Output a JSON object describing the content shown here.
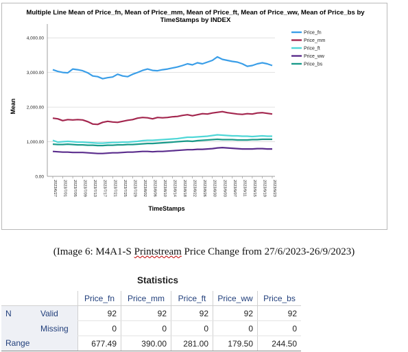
{
  "chart_data": {
    "type": "line",
    "title": "Multiple Line Mean of Price_fn, Mean of Price_mm, Mean of Price_ft, Mean of Price_ww, Mean of Price_bs by TimeStamps by INDEX",
    "title_line1": "Multiple Line Mean of Price_fn, Mean of Price_mm, Mean of Price_ft, Mean of Price_ww, Mean of Price_bs by",
    "title_line2": "TimeStamps by INDEX",
    "xlabel": "TimeStamps",
    "ylabel": "Mean",
    "ylim": [
      0,
      4400
    ],
    "yticks": [
      0,
      1000,
      2000,
      3000,
      4000
    ],
    "ytick_labels": [
      "0.00",
      "1,000.00",
      "2,000.00",
      "3,000.00",
      "4,000.00"
    ],
    "xtick_labels": [
      "2023/6/27",
      "2023/7/01",
      "2023/7/05",
      "2023/7/09",
      "2023/7/13",
      "2023/7/17",
      "2023/7/21",
      "2023/7/25",
      "2023/7/29",
      "2023/8/02",
      "2023/8/06",
      "2023/8/10",
      "2023/8/14",
      "2023/8/18",
      "2023/8/22",
      "2023/8/26",
      "2023/8/30",
      "2023/9/03",
      "2023/9/07",
      "2023/9/11",
      "2023/9/15",
      "2023/9/19",
      "2023/9/23"
    ],
    "grid": true,
    "legend_position": "top-right",
    "series": [
      {
        "name": "Price_fn",
        "color": "#3a9ee8",
        "values": [
          3080,
          3030,
          3000,
          2990,
          3100,
          3080,
          3050,
          2990,
          2900,
          2880,
          2820,
          2850,
          2870,
          2950,
          2900,
          2880,
          2950,
          3000,
          3060,
          3100,
          3060,
          3050,
          3080,
          3100,
          3130,
          3160,
          3200,
          3250,
          3220,
          3280,
          3250,
          3300,
          3350,
          3450,
          3380,
          3350,
          3320,
          3300,
          3250,
          3180,
          3200,
          3250,
          3280,
          3250,
          3200
        ]
      },
      {
        "name": "Price_mm",
        "color": "#a3264e",
        "values": [
          1680,
          1660,
          1610,
          1640,
          1630,
          1640,
          1630,
          1580,
          1510,
          1500,
          1560,
          1590,
          1570,
          1560,
          1590,
          1620,
          1640,
          1680,
          1700,
          1690,
          1660,
          1700,
          1690,
          1700,
          1720,
          1730,
          1760,
          1780,
          1750,
          1780,
          1810,
          1800,
          1830,
          1850,
          1870,
          1840,
          1820,
          1800,
          1790,
          1810,
          1800,
          1830,
          1840,
          1820,
          1800
        ]
      },
      {
        "name": "Price_ft",
        "color": "#4fd7d7",
        "values": [
          1040,
          990,
          1000,
          1010,
          1000,
          990,
          990,
          980,
          970,
          960,
          960,
          970,
          980,
          980,
          990,
          990,
          1000,
          1010,
          1030,
          1040,
          1040,
          1050,
          1060,
          1070,
          1080,
          1090,
          1110,
          1130,
          1130,
          1140,
          1150,
          1160,
          1180,
          1200,
          1190,
          1180,
          1170,
          1170,
          1160,
          1160,
          1150,
          1160,
          1170,
          1160,
          1160
        ]
      },
      {
        "name": "Price_ww",
        "color": "#5a2c8c",
        "values": [
          720,
          710,
          700,
          700,
          690,
          690,
          690,
          680,
          670,
          660,
          660,
          670,
          680,
          680,
          690,
          700,
          700,
          710,
          720,
          720,
          710,
          720,
          720,
          730,
          740,
          750,
          760,
          770,
          770,
          780,
          780,
          790,
          800,
          820,
          830,
          820,
          810,
          800,
          790,
          790,
          790,
          800,
          800,
          790,
          790
        ]
      },
      {
        "name": "Price_bs",
        "color": "#1a9a8a",
        "values": [
          930,
          920,
          920,
          930,
          920,
          910,
          910,
          900,
          900,
          890,
          890,
          900,
          900,
          910,
          910,
          920,
          920,
          930,
          940,
          950,
          950,
          960,
          970,
          980,
          990,
          1000,
          1010,
          1020,
          1010,
          1030,
          1040,
          1050,
          1060,
          1070,
          1060,
          1060,
          1060,
          1050,
          1050,
          1050,
          1060,
          1060,
          1070,
          1070,
          1070
        ]
      }
    ]
  },
  "caption": {
    "prefix": "(Image 6: M4A1-S ",
    "misspelled": "Printstream",
    "suffix": " Price Change from 27/6/2023-26/9/2023)"
  },
  "stats": {
    "title": "Statistics",
    "columns": [
      "Price_fn",
      "Price_mm",
      "Price_ft",
      "Price_ww",
      "Price_bs"
    ],
    "rows": [
      {
        "group": "N",
        "label": "Valid",
        "values": [
          "92",
          "92",
          "92",
          "92",
          "92"
        ]
      },
      {
        "group": "",
        "label": "Missing",
        "values": [
          "0",
          "0",
          "0",
          "0",
          "0"
        ]
      },
      {
        "group": "Range",
        "label": "",
        "values": [
          "677.49",
          "390.00",
          "281.00",
          "179.50",
          "244.50"
        ]
      }
    ]
  }
}
